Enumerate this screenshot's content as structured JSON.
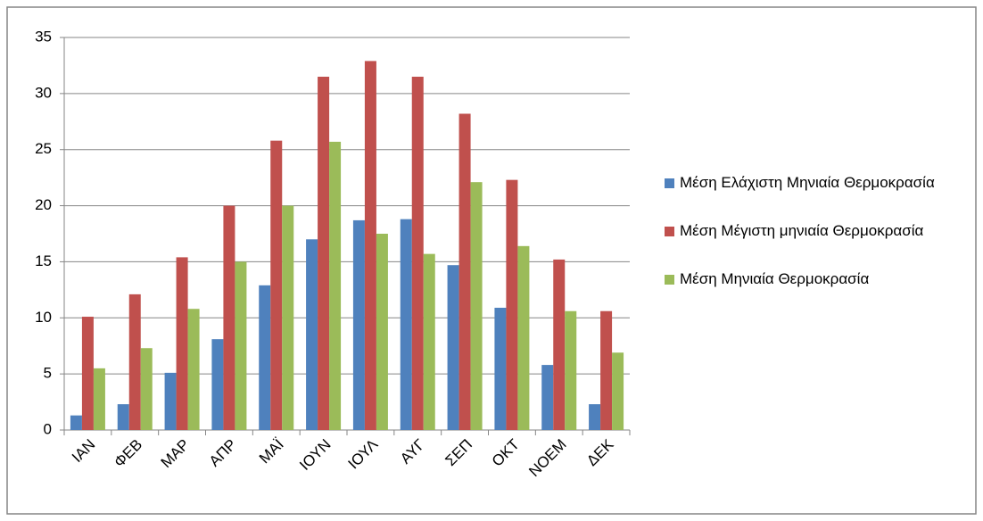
{
  "chart_data": {
    "type": "bar",
    "categories": [
      "ΙΑΝ",
      "ΦΕΒ",
      "ΜΑΡ",
      "ΑΠΡ",
      "ΜΑΪ",
      "ΙΟΥΝ",
      "ΙΟΥΛ",
      "ΑΥΓ",
      "ΣΕΠ",
      "ΟΚΤ",
      "ΝΟΕΜ",
      "ΔΕΚ"
    ],
    "series": [
      {
        "name": "Μέση Ελάχιστη Μηνιαία Θερμοκρασία",
        "color": "#4f81bd",
        "values": [
          1.3,
          2.3,
          5.1,
          8.1,
          12.9,
          17.0,
          18.7,
          18.8,
          14.7,
          10.9,
          5.8,
          2.3
        ]
      },
      {
        "name": "Μέση Μέγιστη μηνιαία Θερμοκρασία",
        "color": "#c0504d",
        "values": [
          10.1,
          12.1,
          15.4,
          20.0,
          25.8,
          31.5,
          32.9,
          31.5,
          28.2,
          22.3,
          15.2,
          10.6
        ]
      },
      {
        "name": "Μέση Μηνιαία Θερμοκρασία",
        "color": "#9bbb59",
        "values": [
          5.5,
          7.3,
          10.8,
          15.0,
          20.0,
          25.7,
          17.5,
          15.7,
          22.1,
          16.4,
          10.6,
          6.9
        ]
      }
    ],
    "ylim": [
      0,
      35
    ],
    "yticks": [
      0,
      5,
      10,
      15,
      20,
      25,
      30,
      35
    ],
    "grid": true,
    "legend": "right"
  }
}
